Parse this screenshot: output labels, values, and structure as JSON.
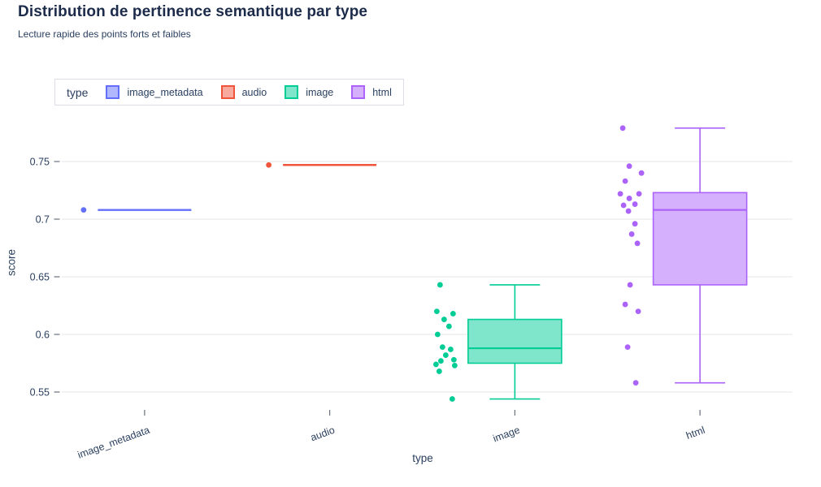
{
  "header": {
    "title": "Distribution de pertinence semantique par type",
    "subtitle": "Lecture rapide des points forts et faibles"
  },
  "legend": {
    "title": "type",
    "entries": [
      {
        "label": "image_metadata",
        "color": "#636EFA",
        "fill": "#B1B7FD"
      },
      {
        "label": "audio",
        "color": "#EF553B",
        "fill": "#F7AA9D"
      },
      {
        "label": "image",
        "color": "#00CC96",
        "fill": "#80E6CB"
      },
      {
        "label": "html",
        "color": "#AB63FA",
        "fill": "#D5B1FD"
      }
    ]
  },
  "chart_data": {
    "type": "box",
    "title": "Distribution de pertinence semantique par type",
    "subtitle": "Lecture rapide des points forts et faibles",
    "xlabel": "type",
    "ylabel": "score",
    "categories": [
      "image_metadata",
      "audio",
      "image",
      "html"
    ],
    "yticks": [
      0.55,
      0.6,
      0.65,
      0.7,
      0.75
    ],
    "ytick_labels": [
      "0.55",
      "0.6",
      "0.65",
      "0.7",
      "0.75"
    ],
    "ylim": [
      0.533,
      0.793
    ],
    "grid": true,
    "legend_position": "top-left",
    "colors": {
      "grid": "#ECEEF1",
      "tick": "#69727f",
      "tick_label": "#2a3f5f"
    },
    "series": [
      {
        "name": "image_metadata",
        "color": "#636EFA",
        "fill": "#B1B7FD",
        "min": 0.708,
        "q1": 0.708,
        "median": 0.708,
        "q3": 0.708,
        "max": 0.708,
        "points": [
          {
            "score": 0.708,
            "dx": -75
          }
        ]
      },
      {
        "name": "audio",
        "color": "#EF553B",
        "fill": "#F7AA9D",
        "min": 0.747,
        "q1": 0.747,
        "median": 0.747,
        "q3": 0.747,
        "max": 0.747,
        "points": [
          {
            "score": 0.747,
            "dx": -75
          }
        ]
      },
      {
        "name": "image",
        "color": "#00CC96",
        "fill": "#80E6CB",
        "min": 0.544,
        "q1": 0.575,
        "median": 0.588,
        "q3": 0.613,
        "max": 0.643,
        "points": [
          {
            "score": 0.643,
            "dx": -92
          },
          {
            "score": 0.62,
            "dx": -96
          },
          {
            "score": 0.618,
            "dx": -76
          },
          {
            "score": 0.613,
            "dx": -87
          },
          {
            "score": 0.607,
            "dx": -81
          },
          {
            "score": 0.6,
            "dx": -95
          },
          {
            "score": 0.589,
            "dx": -89
          },
          {
            "score": 0.587,
            "dx": -79
          },
          {
            "score": 0.582,
            "dx": -85
          },
          {
            "score": 0.578,
            "dx": -75
          },
          {
            "score": 0.577,
            "dx": -91
          },
          {
            "score": 0.574,
            "dx": -97
          },
          {
            "score": 0.573,
            "dx": -74
          },
          {
            "score": 0.568,
            "dx": -93
          },
          {
            "score": 0.544,
            "dx": -77
          }
        ]
      },
      {
        "name": "html",
        "color": "#AB63FA",
        "fill": "#D5B1FD",
        "min": 0.558,
        "q1": 0.643,
        "median": 0.708,
        "q3": 0.723,
        "max": 0.779,
        "points": [
          {
            "score": 0.779,
            "dx": -95
          },
          {
            "score": 0.746,
            "dx": -87
          },
          {
            "score": 0.74,
            "dx": -72
          },
          {
            "score": 0.733,
            "dx": -92
          },
          {
            "score": 0.722,
            "dx": -98
          },
          {
            "score": 0.722,
            "dx": -75
          },
          {
            "score": 0.718,
            "dx": -87
          },
          {
            "score": 0.713,
            "dx": -80
          },
          {
            "score": 0.712,
            "dx": -94
          },
          {
            "score": 0.707,
            "dx": -88
          },
          {
            "score": 0.696,
            "dx": -80
          },
          {
            "score": 0.687,
            "dx": -84
          },
          {
            "score": 0.679,
            "dx": -77
          },
          {
            "score": 0.643,
            "dx": -86
          },
          {
            "score": 0.626,
            "dx": -92
          },
          {
            "score": 0.62,
            "dx": -76
          },
          {
            "score": 0.589,
            "dx": -89
          },
          {
            "score": 0.558,
            "dx": -79
          }
        ]
      }
    ]
  }
}
